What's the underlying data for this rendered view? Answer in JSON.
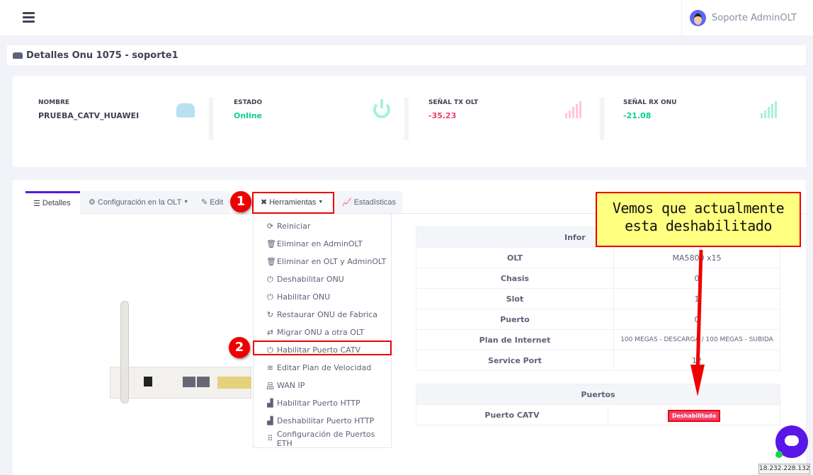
{
  "header": {
    "user_name": "Soporte AdminOLT",
    "menu_icon": "hamburger-icon"
  },
  "page_title": "Detalles Onu 1075 - soporte1",
  "stats": [
    {
      "label": "NOMBRE",
      "value": "PRUEBA_CATV_HUAWEI",
      "color": "#3f4254",
      "icon": "hdd-icon"
    },
    {
      "label": "ESTADO",
      "value": "Online",
      "color": "#0bd18a",
      "icon": "power-icon"
    },
    {
      "label": "SEÑAL TX OLT",
      "value": "-35.23",
      "color": "#f1416c",
      "icon": "signal-icon"
    },
    {
      "label": "SEÑAL RX ONU",
      "value": "-21.08",
      "color": "#0bd18a",
      "icon": "signal-icon"
    }
  ],
  "tabs": [
    {
      "label": "Detalles",
      "icon": "list-icon"
    },
    {
      "label": "Configuración en la OLT",
      "icon": "gear-icon"
    },
    {
      "label": "Edit",
      "icon": "edit-icon"
    },
    {
      "label": "Herramientas",
      "icon": "tools-icon"
    },
    {
      "label": "Estadísticas",
      "icon": "chart-icon"
    }
  ],
  "menu": [
    {
      "label": "Reiniciar",
      "icon": "refresh-icon"
    },
    {
      "label": "Eliminar en AdminOLT",
      "icon": "trash-icon"
    },
    {
      "label": "Eliminar en OLT y AdminOLT",
      "icon": "trash-icon"
    },
    {
      "label": "Deshabilitar ONU",
      "icon": "power-icon"
    },
    {
      "label": "Habilitar ONU",
      "icon": "power-icon"
    },
    {
      "label": "Restaurar ONU de Fabrica",
      "icon": "redo-icon"
    },
    {
      "label": "Migrar ONU a otra OLT",
      "icon": "exchange-icon"
    },
    {
      "label": "Habilitar Puerto CATV",
      "icon": "power-icon"
    },
    {
      "label": "Editar Plan de Velocidad",
      "icon": "wifi-icon"
    },
    {
      "label": "WAN IP",
      "icon": "network-icon"
    },
    {
      "label": "Habilitar Puerto HTTP",
      "icon": "ethernet-icon"
    },
    {
      "label": "Deshabilitar Puerto HTTP",
      "icon": "ethernet-icon"
    },
    {
      "label": "Configuración de Puertos ETH",
      "icon": "grid-icon"
    }
  ],
  "info_table": {
    "header": "Infor",
    "rows": [
      {
        "k": "OLT",
        "v": "MA5800 x15"
      },
      {
        "k": "Chasis",
        "v": "0"
      },
      {
        "k": "Slot",
        "v": "1"
      },
      {
        "k": "Puerto",
        "v": "0"
      },
      {
        "k": "Plan de Internet",
        "v": "100 MEGAS - DESCARGA / 100 MEGAS - SUBIDA"
      },
      {
        "k": "Service Port",
        "v": "12"
      }
    ]
  },
  "ports_table": {
    "header": "Puertos",
    "rows": [
      {
        "k": "Puerto CATV",
        "v": "Deshabilitado"
      }
    ]
  },
  "annotation": {
    "line1": "Vemos que actualmente",
    "line2": "esta deshabilitado",
    "step1": "1",
    "step2": "2"
  },
  "ip_label": "18.232.228.132"
}
